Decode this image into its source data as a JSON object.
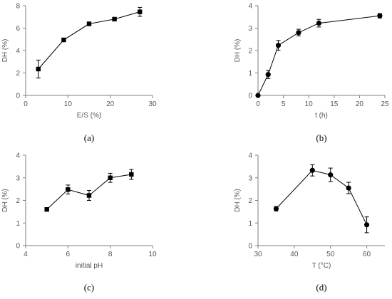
{
  "colors": {
    "axis": "#7f7f7f",
    "line": "#000000",
    "marker": "#000000",
    "text": "#555555"
  },
  "chart_data": [
    {
      "type": "line",
      "panel": "(a)",
      "xlabel": "E/S (%)",
      "ylabel": "DH (%)",
      "xlim": [
        0,
        30
      ],
      "ylim": [
        0,
        8
      ],
      "xticks": [
        0,
        10,
        20,
        30
      ],
      "yticks": [
        0,
        2,
        4,
        6,
        8
      ],
      "x": [
        3,
        9,
        15,
        21,
        27
      ],
      "y": [
        2.35,
        4.95,
        6.38,
        6.8,
        7.45
      ],
      "yerr": [
        0.8,
        0.15,
        0.12,
        0.12,
        0.4
      ],
      "marker": "square",
      "grid": false
    },
    {
      "type": "line",
      "panel": "(b)",
      "xlabel": "t (h)",
      "ylabel": "DH (%)",
      "xlim": [
        0,
        25
      ],
      "ylim": [
        0,
        4
      ],
      "xticks": [
        0,
        5,
        10,
        15,
        20,
        25
      ],
      "yticks": [
        0,
        1,
        2,
        3,
        4
      ],
      "x": [
        0,
        2,
        4,
        8,
        12,
        24
      ],
      "y": [
        0,
        0.93,
        2.23,
        2.8,
        3.22,
        3.55
      ],
      "yerr": [
        0,
        0.18,
        0.22,
        0.15,
        0.17,
        0.1
      ],
      "marker": "circle",
      "grid": false
    },
    {
      "type": "line",
      "panel": "(c)",
      "xlabel": "initial pH",
      "ylabel": "DH (%)",
      "xlim": [
        4,
        10
      ],
      "ylim": [
        0,
        4
      ],
      "xticks": [
        4,
        6,
        8,
        10
      ],
      "yticks": [
        0,
        1,
        2,
        3,
        4
      ],
      "x": [
        5,
        6,
        7,
        8,
        9
      ],
      "y": [
        1.6,
        2.48,
        2.22,
        3.0,
        3.15
      ],
      "yerr": [
        0.03,
        0.2,
        0.22,
        0.2,
        0.22
      ],
      "marker": "square",
      "grid": false
    },
    {
      "type": "line",
      "panel": "(d)",
      "xlabel": "T (°C)",
      "ylabel": "DH (%)",
      "xlim": [
        30,
        65
      ],
      "ylim": [
        0,
        4
      ],
      "xticks": [
        30,
        40,
        50,
        60
      ],
      "yticks": [
        0,
        1,
        2,
        3,
        4
      ],
      "x": [
        35,
        45,
        50,
        55,
        60
      ],
      "y": [
        1.63,
        3.33,
        3.13,
        2.55,
        0.92
      ],
      "yerr": [
        0.1,
        0.25,
        0.3,
        0.25,
        0.35
      ],
      "marker": "circle",
      "grid": false
    }
  ]
}
